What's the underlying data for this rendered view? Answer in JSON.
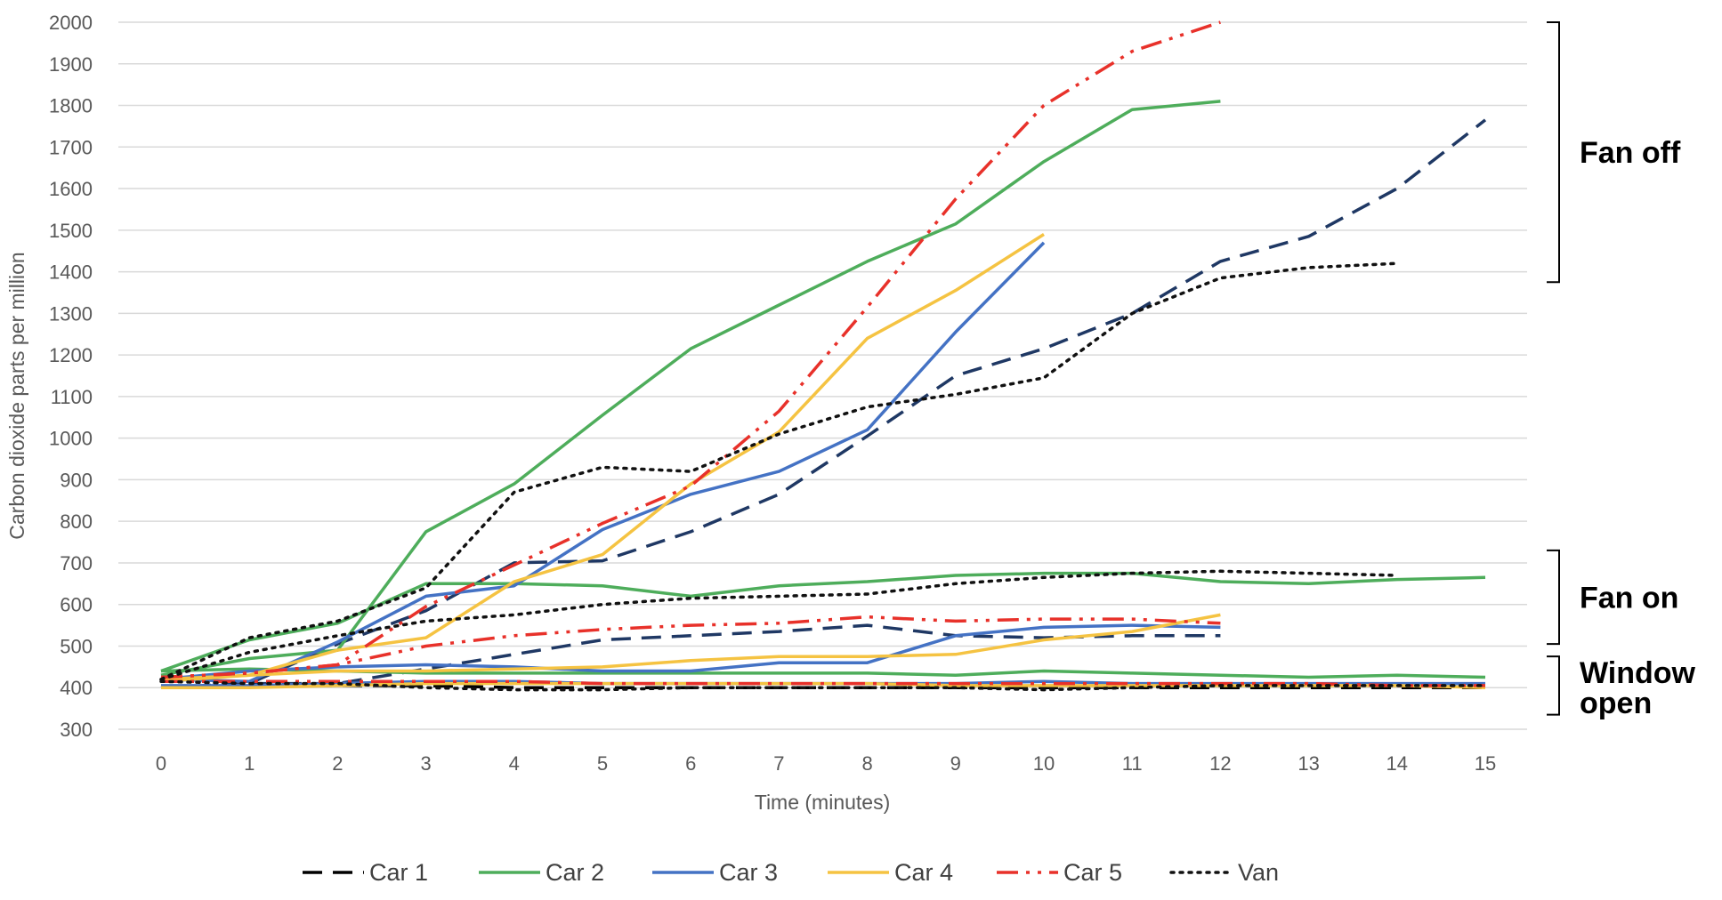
{
  "chart_data": {
    "type": "line",
    "title": "",
    "xlabel": "Time (minutes)",
    "ylabel": "Carbon dioxide parts per million",
    "xlim": [
      0,
      15
    ],
    "ylim": [
      300,
      2000
    ],
    "x_ticks": [
      0,
      1,
      2,
      3,
      4,
      5,
      6,
      7,
      8,
      9,
      10,
      11,
      12,
      13,
      14,
      15
    ],
    "y_ticks": [
      300,
      400,
      500,
      600,
      700,
      800,
      900,
      1000,
      1100,
      1200,
      1300,
      1400,
      1500,
      1600,
      1700,
      1800,
      1900,
      2000
    ],
    "grid": "horizontal",
    "legend_position": "bottom",
    "series": [
      {
        "name": "Car 1",
        "color": "#1f3864",
        "style": "dash",
        "condition": "Fan off",
        "x": [
          0,
          1,
          2,
          3,
          4,
          5,
          6,
          7,
          8,
          9,
          10,
          11,
          12,
          13,
          14,
          15
        ],
        "y": [
          400,
          410,
          505,
          585,
          700,
          705,
          775,
          865,
          1005,
          1150,
          1215,
          1300,
          1425,
          1485,
          1600,
          1765
        ]
      },
      {
        "name": "Car 1",
        "color": "#1f3864",
        "style": "dash",
        "condition": "Fan on",
        "x": [
          0,
          1,
          2,
          3,
          4,
          5,
          6,
          7,
          8,
          9,
          10,
          11,
          12
        ],
        "y": [
          400,
          410,
          410,
          445,
          480,
          515,
          525,
          535,
          550,
          525,
          520,
          525,
          525
        ]
      },
      {
        "name": "Car 1",
        "color": "#000000",
        "style": "dash",
        "condition": "Window open",
        "x": [
          0,
          1,
          2,
          3,
          4,
          5,
          6,
          7,
          8,
          9,
          10,
          11,
          12,
          13,
          14,
          15
        ],
        "y": [
          400,
          405,
          405,
          405,
          400,
          400,
          400,
          400,
          400,
          400,
          400,
          400,
          400,
          400,
          400,
          400
        ]
      },
      {
        "name": "Car 2",
        "color": "#4ead5b",
        "style": "solid",
        "condition": "Fan off",
        "x": [
          0,
          1,
          2,
          3,
          4,
          5,
          6,
          7,
          8,
          9,
          10,
          11,
          12
        ],
        "y": [
          430,
          470,
          490,
          775,
          890,
          1055,
          1215,
          1320,
          1425,
          1515,
          1665,
          1790,
          1810
        ]
      },
      {
        "name": "Car 2",
        "color": "#4ead5b",
        "style": "solid",
        "condition": "Fan on",
        "x": [
          0,
          1,
          2,
          3,
          4,
          5,
          6,
          7,
          8,
          9,
          10,
          11,
          12,
          13,
          14,
          15
        ],
        "y": [
          440,
          515,
          555,
          650,
          650,
          645,
          620,
          645,
          655,
          670,
          675,
          675,
          655,
          650,
          660,
          665
        ]
      },
      {
        "name": "Car 2",
        "color": "#4ead5b",
        "style": "solid",
        "condition": "Window open",
        "x": [
          0,
          1,
          2,
          3,
          4,
          5,
          6,
          7,
          8,
          9,
          10,
          11,
          12,
          13,
          14,
          15
        ],
        "y": [
          440,
          445,
          440,
          435,
          435,
          435,
          435,
          435,
          435,
          430,
          440,
          435,
          430,
          425,
          430,
          425
        ]
      },
      {
        "name": "Car 3",
        "color": "#4472c4",
        "style": "solid",
        "condition": "Fan off",
        "x": [
          0,
          1,
          2,
          3,
          4,
          5,
          6,
          7,
          8,
          9,
          10
        ],
        "y": [
          420,
          415,
          510,
          620,
          645,
          780,
          865,
          920,
          1020,
          1255,
          1470
        ]
      },
      {
        "name": "Car 3",
        "color": "#4472c4",
        "style": "solid",
        "condition": "Fan on",
        "x": [
          0,
          1,
          2,
          3,
          4,
          5,
          6,
          7,
          8,
          9,
          10,
          11,
          12
        ],
        "y": [
          420,
          440,
          450,
          455,
          450,
          440,
          440,
          460,
          460,
          525,
          545,
          550,
          545
        ]
      },
      {
        "name": "Car 3",
        "color": "#4472c4",
        "style": "solid",
        "condition": "Window open",
        "x": [
          0,
          1,
          2,
          3,
          4,
          5,
          6,
          7,
          8,
          9,
          10,
          11,
          12,
          13,
          14,
          15
        ],
        "y": [
          405,
          405,
          410,
          415,
          415,
          410,
          410,
          410,
          410,
          410,
          415,
          410,
          410,
          410,
          410,
          410
        ]
      },
      {
        "name": "Car 4",
        "color": "#f5c342",
        "style": "solid",
        "condition": "Fan off",
        "x": [
          0,
          1,
          2,
          3,
          4,
          5,
          6,
          7,
          8,
          9,
          10
        ],
        "y": [
          420,
          430,
          490,
          520,
          655,
          720,
          890,
          1015,
          1240,
          1355,
          1490
        ]
      },
      {
        "name": "Car 4",
        "color": "#f5c342",
        "style": "solid",
        "condition": "Fan on",
        "x": [
          0,
          1,
          2,
          3,
          4,
          5,
          6,
          7,
          8,
          9,
          10,
          11,
          12
        ],
        "y": [
          415,
          430,
          440,
          440,
          445,
          450,
          465,
          475,
          475,
          480,
          515,
          535,
          575
        ]
      },
      {
        "name": "Car 4",
        "color": "#f5c342",
        "style": "solid",
        "condition": "Window open",
        "x": [
          0,
          1,
          2,
          3,
          4,
          5,
          6,
          7,
          8,
          9,
          10,
          11,
          12,
          13,
          14,
          15
        ],
        "y": [
          400,
          400,
          405,
          410,
          410,
          410,
          410,
          410,
          410,
          405,
          405,
          405,
          405,
          405,
          405,
          400
        ]
      },
      {
        "name": "Car 5",
        "color": "#e8312a",
        "style": "dash-dot-dot",
        "condition": "Fan off",
        "x": [
          0,
          1,
          2,
          3,
          4,
          5,
          6,
          7,
          8,
          9,
          10,
          11,
          12
        ],
        "y": [
          425,
          435,
          455,
          595,
          695,
          795,
          885,
          1065,
          1315,
          1575,
          1800,
          1930,
          2000
        ]
      },
      {
        "name": "Car 5",
        "color": "#e8312a",
        "style": "dash-dot-dot",
        "condition": "Fan on",
        "x": [
          0,
          1,
          2,
          3,
          4,
          5,
          6,
          7,
          8,
          9,
          10,
          11,
          12
        ],
        "y": [
          425,
          435,
          455,
          500,
          525,
          540,
          550,
          555,
          570,
          560,
          565,
          565,
          555
        ]
      },
      {
        "name": "Car 5",
        "color": "#e8312a",
        "style": "dash-dot-dot",
        "condition": "Window open",
        "x": [
          0,
          1,
          2,
          3,
          4,
          5,
          6,
          7,
          8,
          9,
          10,
          11,
          12,
          13,
          14,
          15
        ],
        "y": [
          415,
          415,
          415,
          415,
          415,
          410,
          410,
          410,
          410,
          410,
          410,
          410,
          410,
          410,
          405,
          405
        ]
      },
      {
        "name": "Van",
        "color": "#111111",
        "style": "dot",
        "condition": "Fan off",
        "x": [
          0,
          1,
          2,
          3,
          4,
          5,
          6,
          7,
          8,
          9,
          10,
          11,
          12,
          13,
          14
        ],
        "y": [
          420,
          520,
          560,
          640,
          870,
          930,
          920,
          1010,
          1075,
          1105,
          1145,
          1300,
          1385,
          1410,
          1420
        ]
      },
      {
        "name": "Van",
        "color": "#111111",
        "style": "dot",
        "condition": "Fan on",
        "x": [
          0,
          1,
          2,
          3,
          4,
          5,
          6,
          7,
          8,
          9,
          10,
          11,
          12,
          13,
          14
        ],
        "y": [
          420,
          485,
          525,
          560,
          575,
          600,
          615,
          620,
          625,
          650,
          665,
          675,
          680,
          675,
          670
        ]
      },
      {
        "name": "Van",
        "color": "#111111",
        "style": "dot",
        "condition": "Window open",
        "x": [
          0,
          1,
          2,
          3,
          4,
          5,
          6,
          7,
          8,
          9,
          10,
          11,
          12,
          13,
          14,
          15
        ],
        "y": [
          415,
          410,
          410,
          400,
          395,
          395,
          400,
          400,
          400,
          400,
          395,
          400,
          405,
          405,
          405,
          405
        ]
      }
    ],
    "legend": [
      {
        "name": "Car 1",
        "color": "#000000",
        "style": "dash"
      },
      {
        "name": "Car 2",
        "color": "#4ead5b",
        "style": "solid"
      },
      {
        "name": "Car 3",
        "color": "#4472c4",
        "style": "solid"
      },
      {
        "name": "Car 4",
        "color": "#f5c342",
        "style": "solid"
      },
      {
        "name": "Car 5",
        "color": "#e8312a",
        "style": "dash-dot-dot"
      },
      {
        "name": "Van",
        "color": "#111111",
        "style": "dot"
      }
    ],
    "annotations": [
      {
        "text": "Fan off",
        "y_range": [
          1375,
          2000
        ]
      },
      {
        "text": "Fan on",
        "y_range": [
          505,
          730
        ]
      },
      {
        "text": "Window open",
        "y_range": [
          335,
          475
        ]
      }
    ]
  }
}
